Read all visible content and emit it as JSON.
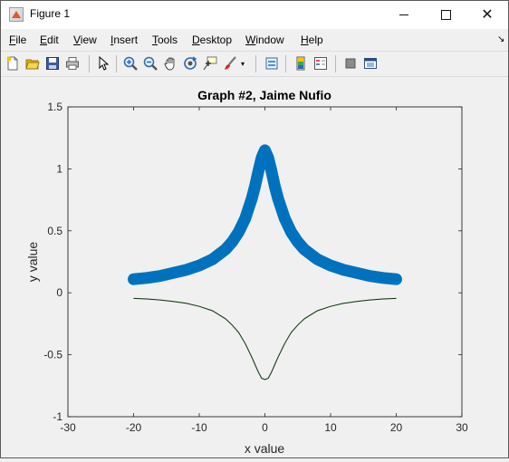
{
  "window": {
    "title": "Figure 1"
  },
  "titlebar_buttons": [
    "minimize",
    "maximize",
    "close"
  ],
  "menubar": {
    "items": [
      "File",
      "Edit",
      "View",
      "Insert",
      "Tools",
      "Desktop",
      "Window",
      "Help"
    ]
  },
  "toolbar": {
    "icons": [
      "new-figure-icon",
      "open-file-icon",
      "save-icon",
      "print-icon",
      "pointer-icon",
      "zoom-in-icon",
      "zoom-out-icon",
      "pan-icon",
      "rotate-3d-icon",
      "data-cursor-icon",
      "brush-icon",
      "link-plot-icon",
      "colorbar-icon",
      "legend-icon",
      "hide-plot-tools-icon",
      "show-plot-tools-icon"
    ]
  },
  "chart_data": {
    "type": "line",
    "title": "Graph #2, Jaime Nufio",
    "xlabel": "x value",
    "ylabel": "y value",
    "xlim": [
      -30,
      30
    ],
    "ylim": [
      -1,
      1.5
    ],
    "xticks": [
      "-30",
      "-20",
      "-10",
      "0",
      "10",
      "20",
      "30"
    ],
    "yticks": [
      "-1",
      "-0.5",
      "0",
      "0.5",
      "1",
      "1.5"
    ],
    "grid": false,
    "series": [
      {
        "style": "markers (x) thick",
        "color": "#0072bd",
        "x": [
          -20,
          -18,
          -16,
          -14,
          -12,
          -10,
          -8,
          -6,
          -5,
          -4,
          -3,
          -2,
          -1.5,
          -1,
          -0.5,
          0,
          0.5,
          1,
          1.5,
          2,
          3,
          4,
          5,
          6,
          8,
          10,
          12,
          14,
          16,
          18,
          20
        ],
        "y": [
          0.11,
          0.12,
          0.135,
          0.16,
          0.185,
          0.22,
          0.27,
          0.35,
          0.41,
          0.49,
          0.6,
          0.76,
          0.86,
          0.98,
          1.09,
          1.15,
          1.09,
          0.98,
          0.86,
          0.76,
          0.6,
          0.49,
          0.41,
          0.35,
          0.27,
          0.22,
          0.185,
          0.16,
          0.135,
          0.12,
          0.11
        ]
      },
      {
        "style": "thin line",
        "color": "#000000",
        "x": [
          -20,
          -18,
          -16,
          -14,
          -12,
          -10,
          -8,
          -6,
          -5,
          -4,
          -3,
          -2,
          -1.5,
          -1,
          -0.5,
          0,
          0.5,
          1,
          1.5,
          2,
          3,
          4,
          5,
          6,
          8,
          10,
          12,
          14,
          16,
          18,
          20
        ],
        "y": [
          -0.045,
          -0.05,
          -0.058,
          -0.07,
          -0.085,
          -0.11,
          -0.145,
          -0.21,
          -0.26,
          -0.32,
          -0.41,
          -0.52,
          -0.58,
          -0.64,
          -0.69,
          -0.7,
          -0.69,
          -0.64,
          -0.58,
          -0.52,
          -0.41,
          -0.32,
          -0.26,
          -0.21,
          -0.145,
          -0.11,
          -0.085,
          -0.07,
          -0.058,
          -0.05,
          -0.045
        ]
      }
    ]
  }
}
